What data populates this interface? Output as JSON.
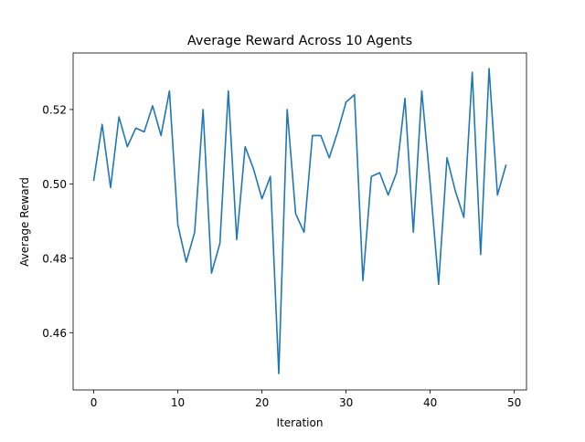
{
  "chart_data": {
    "type": "line",
    "title": "Average Reward Across 10 Agents",
    "xlabel": "Iteration",
    "ylabel": "Average Reward",
    "xlim": [
      -2.45,
      51.45
    ],
    "ylim": [
      0.4446,
      0.5352
    ],
    "xticks": [
      0,
      10,
      20,
      30,
      40,
      50
    ],
    "yticks": [
      0.46,
      0.48,
      0.5,
      0.52
    ],
    "xtick_labels": [
      "0",
      "10",
      "20",
      "30",
      "40",
      "50"
    ],
    "ytick_labels": [
      "0.46",
      "0.48",
      "0.50",
      "0.52"
    ],
    "grid": false,
    "series": [
      {
        "color": "#1f77b4",
        "x": [
          0,
          1,
          2,
          3,
          4,
          5,
          6,
          7,
          8,
          9,
          10,
          11,
          12,
          13,
          14,
          15,
          16,
          17,
          18,
          19,
          20,
          21,
          22,
          23,
          24,
          25,
          26,
          27,
          28,
          29,
          30,
          31,
          32,
          33,
          34,
          35,
          36,
          37,
          38,
          39,
          40,
          41,
          42,
          43,
          44,
          45,
          46,
          47,
          48,
          49
        ],
        "values": [
          0.501,
          0.516,
          0.499,
          0.518,
          0.51,
          0.515,
          0.514,
          0.521,
          0.513,
          0.525,
          0.489,
          0.479,
          0.487,
          0.52,
          0.476,
          0.484,
          0.525,
          0.485,
          0.51,
          0.504,
          0.496,
          0.502,
          0.449,
          0.52,
          0.492,
          0.487,
          0.513,
          0.513,
          0.507,
          0.514,
          0.522,
          0.524,
          0.474,
          0.502,
          0.503,
          0.497,
          0.503,
          0.523,
          0.487,
          0.525,
          0.5,
          0.473,
          0.507,
          0.498,
          0.491,
          0.53,
          0.481,
          0.531,
          0.497,
          0.505
        ]
      }
    ]
  }
}
